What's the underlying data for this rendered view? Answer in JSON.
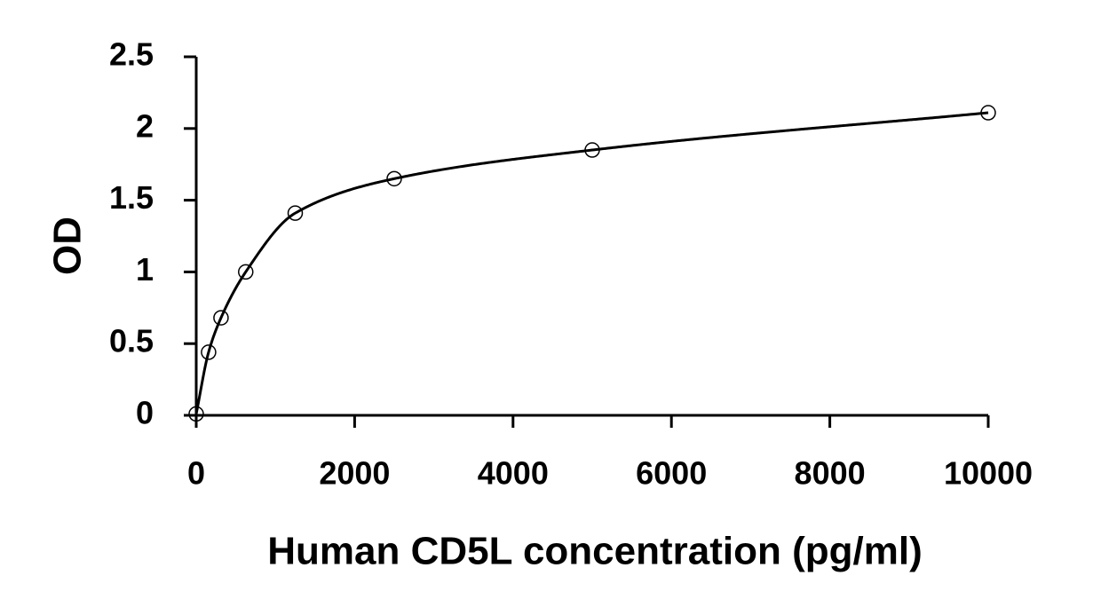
{
  "chart_data": {
    "type": "scatter",
    "title": "",
    "xlabel": "Human CD5L concentration (pg/ml)",
    "ylabel": "OD",
    "xlim": [
      0,
      10000
    ],
    "ylim": [
      0,
      2.5
    ],
    "x_ticks": [
      "0",
      "2000",
      "4000",
      "6000",
      "8000",
      "10000"
    ],
    "y_ticks": [
      "0",
      "0.5",
      "1",
      "1.5",
      "2",
      "2.5"
    ],
    "grid": false,
    "legend": "none",
    "series": [
      {
        "marker": "open-circle",
        "points": [
          {
            "x": 0,
            "y": 0.01
          },
          {
            "x": 156,
            "y": 0.44
          },
          {
            "x": 313,
            "y": 0.68
          },
          {
            "x": 625,
            "y": 1.0
          },
          {
            "x": 1250,
            "y": 1.41
          },
          {
            "x": 2500,
            "y": 1.65
          },
          {
            "x": 5000,
            "y": 1.85
          },
          {
            "x": 10000,
            "y": 2.11
          }
        ]
      }
    ],
    "fit_curve": "smooth"
  }
}
